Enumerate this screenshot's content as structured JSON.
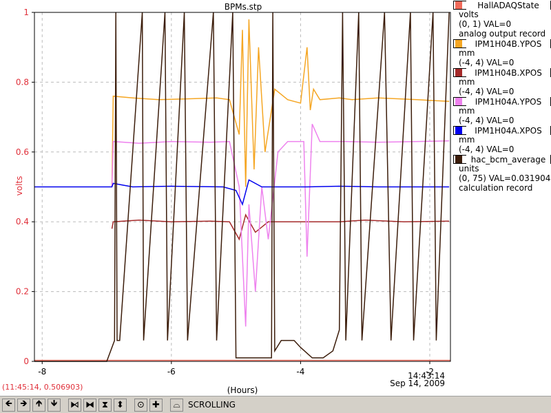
{
  "chart_data": {
    "type": "line",
    "title": "BPMs.stp",
    "xlabel": "(Hours)",
    "ylabel": "volts",
    "xlim": [
      -8.12,
      -1.68
    ],
    "ylim": [
      0,
      1
    ],
    "x_ticks": [
      -8,
      -6,
      -4,
      -2
    ],
    "y_ticks": [
      0,
      0.2,
      0.4,
      0.6,
      0.8,
      1
    ],
    "y_tick_labels": [
      "0",
      "0.2",
      "0.4",
      "0.6",
      "0.8",
      "1"
    ],
    "x_tick_labels": [
      "-8",
      "-6",
      "-4",
      "-2"
    ],
    "end_time": "14:43:14",
    "end_date": "Sep 14, 2009",
    "grid": true,
    "legend_position": "right",
    "series": [
      {
        "name": "HallADAQState",
        "color": "#f06a5a",
        "points": [
          [
            -8.12,
            0.003
          ],
          [
            -1.68,
            0.003
          ]
        ]
      },
      {
        "name": "IPM1H04B.YPOS",
        "color": "#f5a623",
        "points": [
          [
            -6.92,
            0.5
          ],
          [
            -6.9,
            0.76
          ],
          [
            -6.6,
            0.755
          ],
          [
            -6.2,
            0.75
          ],
          [
            -5.8,
            0.752
          ],
          [
            -5.3,
            0.755
          ],
          [
            -5.1,
            0.75
          ],
          [
            -4.95,
            0.65
          ],
          [
            -4.9,
            0.95
          ],
          [
            -4.85,
            0.5
          ],
          [
            -4.8,
            0.98
          ],
          [
            -4.72,
            0.55
          ],
          [
            -4.65,
            0.9
          ],
          [
            -4.55,
            0.6
          ],
          [
            -4.4,
            0.78
          ],
          [
            -4.2,
            0.75
          ],
          [
            -4.0,
            0.74
          ],
          [
            -3.9,
            0.9
          ],
          [
            -3.85,
            0.72
          ],
          [
            -3.8,
            0.78
          ],
          [
            -3.7,
            0.75
          ],
          [
            -3.4,
            0.755
          ],
          [
            -3.2,
            0.75
          ],
          [
            -2.8,
            0.755
          ],
          [
            -2.2,
            0.75
          ],
          [
            -1.7,
            0.745
          ]
        ]
      },
      {
        "name": "IPM1H04B.XPOS",
        "color": "#a52a2a",
        "points": [
          [
            -6.92,
            0.38
          ],
          [
            -6.9,
            0.4
          ],
          [
            -6.5,
            0.405
          ],
          [
            -6.0,
            0.4
          ],
          [
            -5.4,
            0.402
          ],
          [
            -5.1,
            0.4
          ],
          [
            -4.95,
            0.35
          ],
          [
            -4.85,
            0.42
          ],
          [
            -4.7,
            0.37
          ],
          [
            -4.5,
            0.4
          ],
          [
            -4.2,
            0.4
          ],
          [
            -3.9,
            0.4
          ],
          [
            -3.85,
            0.4
          ],
          [
            -3.4,
            0.4
          ],
          [
            -3.0,
            0.405
          ],
          [
            -2.4,
            0.4
          ],
          [
            -1.7,
            0.402
          ]
        ]
      },
      {
        "name": "IPM1H04A.YPOS",
        "color": "#ee82ee",
        "points": [
          [
            -6.92,
            0.5
          ],
          [
            -6.9,
            0.63
          ],
          [
            -6.5,
            0.625
          ],
          [
            -6.0,
            0.63
          ],
          [
            -5.4,
            0.628
          ],
          [
            -5.1,
            0.63
          ],
          [
            -4.95,
            0.5
          ],
          [
            -4.9,
            0.3
          ],
          [
            -4.85,
            0.1
          ],
          [
            -4.8,
            0.45
          ],
          [
            -4.7,
            0.2
          ],
          [
            -4.6,
            0.5
          ],
          [
            -4.5,
            0.35
          ],
          [
            -4.35,
            0.6
          ],
          [
            -4.2,
            0.63
          ],
          [
            -3.95,
            0.63
          ],
          [
            -3.9,
            0.3
          ],
          [
            -3.82,
            0.68
          ],
          [
            -3.7,
            0.63
          ],
          [
            -3.3,
            0.63
          ],
          [
            -2.8,
            0.628
          ],
          [
            -2.2,
            0.63
          ],
          [
            -1.7,
            0.632
          ]
        ]
      },
      {
        "name": "IPM1H04A.XPOS",
        "color": "#0000ee",
        "points": [
          [
            -8.12,
            0.5
          ],
          [
            -6.92,
            0.5
          ],
          [
            -6.9,
            0.51
          ],
          [
            -6.6,
            0.5
          ],
          [
            -6.0,
            0.502
          ],
          [
            -5.2,
            0.5
          ],
          [
            -5.0,
            0.49
          ],
          [
            -4.9,
            0.45
          ],
          [
            -4.8,
            0.52
          ],
          [
            -4.6,
            0.5
          ],
          [
            -4.2,
            0.5
          ],
          [
            -3.9,
            0.5
          ],
          [
            -3.4,
            0.502
          ],
          [
            -2.8,
            0.5
          ],
          [
            -2.2,
            0.5
          ],
          [
            -1.7,
            0.5
          ]
        ]
      },
      {
        "name": "hac_bcm_average",
        "color": "#3b1c0a",
        "points": [
          [
            -8.12,
            0.0
          ],
          [
            -7.0,
            0.0
          ],
          [
            -6.88,
            0.06
          ],
          [
            -6.86,
            1.0
          ],
          [
            -6.84,
            0.06
          ],
          [
            -6.8,
            0.06
          ],
          [
            -6.45,
            1
          ],
          [
            -6.43,
            0.06
          ],
          [
            -6.1,
            1
          ],
          [
            -6.06,
            0.06
          ],
          [
            -5.8,
            1
          ],
          [
            -5.75,
            0.06
          ],
          [
            -5.35,
            1
          ],
          [
            -5.3,
            0.06
          ],
          [
            -5.05,
            1
          ],
          [
            -5.0,
            0.01
          ],
          [
            -4.85,
            0.01
          ],
          [
            -4.45,
            0.01
          ],
          [
            -4.43,
            1
          ],
          [
            -4.4,
            0.03
          ],
          [
            -4.3,
            0.06
          ],
          [
            -4.1,
            0.06
          ],
          [
            -4.0,
            0.04
          ],
          [
            -3.82,
            0.01
          ],
          [
            -3.65,
            0.01
          ],
          [
            -3.5,
            0.03
          ],
          [
            -3.4,
            0.09
          ],
          [
            -3.35,
            1
          ],
          [
            -3.3,
            0.06
          ],
          [
            -3.1,
            1
          ],
          [
            -3.05,
            0.06
          ],
          [
            -2.7,
            1
          ],
          [
            -2.6,
            0.06
          ],
          [
            -2.3,
            1
          ],
          [
            -2.25,
            0.06
          ],
          [
            -1.95,
            1
          ],
          [
            -1.9,
            0.06
          ],
          [
            -1.7,
            1
          ]
        ]
      }
    ]
  },
  "legend": {
    "items": [
      {
        "name": "HallADAQState",
        "color": "#f06a5a",
        "lines": [
          "volts",
          "(0, 1)  VAL=0",
          "analog output record"
        ]
      },
      {
        "name": "IPM1H04B.YPOS",
        "color": "#f5a623",
        "lines": [
          "mm",
          "(-4, 4) VAL=0"
        ]
      },
      {
        "name": "IPM1H04B.XPOS",
        "color": "#a52a2a",
        "lines": [
          "mm",
          "(-4, 4) VAL=0"
        ]
      },
      {
        "name": "IPM1H04A.YPOS",
        "color": "#ee82ee",
        "lines": [
          "mm",
          "(-4, 4) VAL=0"
        ]
      },
      {
        "name": "IPM1H04A.XPOS",
        "color": "#0000ee",
        "lines": [
          "mm",
          "(-4, 4) VAL=0"
        ]
      },
      {
        "name": "hac_bcm_average",
        "color": "#3b1c0a",
        "lines": [
          "units",
          "(0, 75) VAL=0.0319041",
          "calculation record"
        ]
      }
    ]
  },
  "cursor_readout": "(11:45:14, 0.506903)",
  "toolbar": {
    "buttons": [
      {
        "name": "scroll-left-button",
        "icon": "arrow-left-icon",
        "glyph": "🡸"
      },
      {
        "name": "scroll-right-button",
        "icon": "arrow-right-icon",
        "glyph": "🡺"
      },
      {
        "name": "scroll-up-button",
        "icon": "arrow-up-icon",
        "glyph": "🡹"
      },
      {
        "name": "scroll-down-button",
        "icon": "arrow-down-icon",
        "glyph": "🡻"
      },
      {
        "name": "zoom-in-x-button",
        "icon": "zoom-in-x-icon",
        "glyph": "⧑"
      },
      {
        "name": "zoom-out-x-button",
        "icon": "zoom-out-x-icon",
        "glyph": "⧓"
      },
      {
        "name": "zoom-in-y-button",
        "icon": "zoom-in-y-icon",
        "glyph": "⧗"
      },
      {
        "name": "zoom-out-y-button",
        "icon": "zoom-out-y-icon",
        "glyph": "⬍"
      },
      {
        "name": "stop-button",
        "icon": "stop-icon",
        "glyph": "⊙"
      },
      {
        "name": "add-button",
        "icon": "plus-icon",
        "glyph": "✚"
      },
      {
        "name": "scroll-mode-button",
        "icon": "scroll-mode-icon",
        "glyph": "⌓"
      }
    ],
    "mode_label": "SCROLLING"
  }
}
